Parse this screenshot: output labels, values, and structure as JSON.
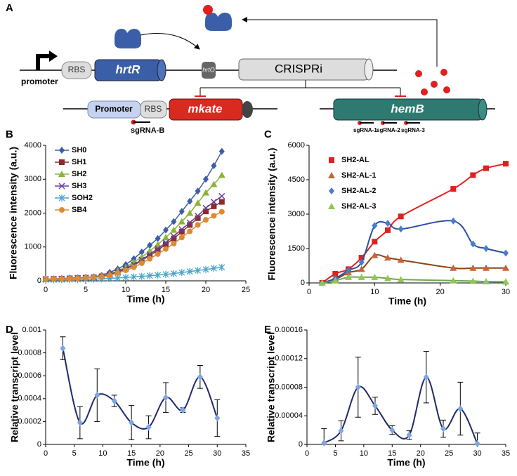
{
  "diagram": {
    "panel": "A",
    "promoter_arrow": "promoter",
    "rbs_1": "RBS",
    "hrtR": "hrtR",
    "hrtO": "hrtO",
    "crispri": "CRISPRi",
    "promoter_box": "Promoter",
    "rbs_2": "RBS",
    "mkate": "mkate",
    "hemB": "hemB",
    "sgrna_b": "sgRNA-B",
    "sgrna_1": "sgRNA-1",
    "sgrna_2": "sgRNA-2",
    "sgrna_3": "sgRNA-3"
  },
  "chart_data": [
    {
      "type": "line",
      "panel": "B",
      "xlabel": "Time (h)",
      "ylabel": "Fluorescence intensity (a.u.)",
      "legend": true,
      "line": "straight",
      "x": [
        0,
        1,
        2,
        3,
        4,
        5,
        6,
        7,
        8,
        9,
        10,
        11,
        12,
        13,
        14,
        15,
        16,
        17,
        18,
        19,
        20,
        21,
        22
      ],
      "xlim": [
        0,
        25
      ],
      "xticks": [
        0,
        5,
        10,
        15,
        20,
        25
      ],
      "ylim": [
        0,
        4000
      ],
      "yticks": [
        0,
        1000,
        2000,
        3000,
        4000
      ],
      "series": [
        {
          "name": "SH0",
          "color": "#3b5ea8",
          "marker": "diamond",
          "values": [
            50,
            60,
            70,
            80,
            90,
            100,
            120,
            160,
            250,
            350,
            480,
            650,
            850,
            1050,
            1250,
            1500,
            1750,
            2050,
            2350,
            2650,
            3000,
            3400,
            3820
          ]
        },
        {
          "name": "SH1",
          "color": "#8b2b2b",
          "marker": "square",
          "values": [
            50,
            55,
            60,
            70,
            80,
            90,
            100,
            130,
            180,
            260,
            350,
            460,
            600,
            750,
            900,
            1080,
            1250,
            1450,
            1650,
            1850,
            2050,
            2200,
            2330
          ]
        },
        {
          "name": "SH2",
          "color": "#8db33a",
          "marker": "triangle",
          "values": [
            50,
            55,
            60,
            70,
            80,
            90,
            110,
            140,
            200,
            300,
            400,
            550,
            700,
            880,
            1070,
            1280,
            1500,
            1750,
            2000,
            2300,
            2600,
            2850,
            3120
          ]
        },
        {
          "name": "SH3",
          "color": "#6a3d9a",
          "marker": "x",
          "values": [
            50,
            55,
            60,
            70,
            80,
            90,
            100,
            130,
            190,
            270,
            370,
            480,
            620,
            780,
            950,
            1130,
            1320,
            1520,
            1720,
            1920,
            2150,
            2330,
            2500
          ]
        },
        {
          "name": "SOH2",
          "color": "#4aa3c8",
          "marker": "star",
          "values": [
            30,
            32,
            35,
            38,
            40,
            45,
            50,
            60,
            70,
            85,
            100,
            115,
            130,
            150,
            170,
            190,
            215,
            245,
            275,
            305,
            335,
            370,
            400
          ]
        },
        {
          "name": "SB4",
          "color": "#d98b35",
          "marker": "circle",
          "values": [
            50,
            55,
            60,
            65,
            75,
            85,
            95,
            120,
            160,
            230,
            310,
            400,
            520,
            650,
            790,
            940,
            1100,
            1280,
            1460,
            1650,
            1800,
            1920,
            2040
          ]
        }
      ]
    },
    {
      "type": "line",
      "panel": "C",
      "xlabel": "Time (h)",
      "ylabel": "Fluorescence intensity (a.u.)",
      "legend": true,
      "line": "smooth",
      "x": [
        2,
        4,
        6,
        8,
        10,
        12,
        14,
        22,
        25,
        27,
        30
      ],
      "xlim": [
        0,
        30
      ],
      "xticks": [
        0,
        10,
        20,
        30
      ],
      "ylim": [
        0,
        6000
      ],
      "yticks": [
        0,
        1500,
        3000,
        4500,
        6000
      ],
      "series": [
        {
          "name": "SH2-AL",
          "color": "#e0201e",
          "line_color": "#e0201e",
          "marker": "square",
          "values": [
            0,
            400,
            600,
            1100,
            1800,
            2300,
            2900,
            4100,
            4700,
            5000,
            5200
          ]
        },
        {
          "name": "SH2-AL-1",
          "color": "#c8643a",
          "line_color": "#8b4513",
          "marker": "triangle",
          "values": [
            0,
            150,
            450,
            600,
            1200,
            1100,
            1000,
            650,
            650,
            650,
            650
          ]
        },
        {
          "name": "SH2-AL-2",
          "color": "#4a7cc8",
          "line_color": "#2b4fa0",
          "marker": "diamond",
          "values": [
            0,
            200,
            550,
            900,
            2500,
            2600,
            2350,
            2700,
            1700,
            1500,
            1300
          ]
        },
        {
          "name": "SH2-AL-3",
          "color": "#8fc850",
          "line_color": "#6aa84f",
          "marker": "triangle",
          "values": [
            0,
            100,
            250,
            250,
            250,
            200,
            150,
            100,
            80,
            60,
            50
          ]
        }
      ]
    },
    {
      "type": "line",
      "panel": "D",
      "xlabel": "Time (h)",
      "ylabel": "Relative transcript level",
      "legend": false,
      "line": "smooth",
      "x": [
        3,
        6,
        9,
        12,
        15,
        18,
        21,
        24,
        27,
        30
      ],
      "xlim": [
        0,
        35
      ],
      "xticks": [
        0,
        5,
        10,
        15,
        20,
        25,
        30,
        35
      ],
      "ylim": [
        0,
        0.001
      ],
      "yticks": [
        0,
        0.0002,
        0.0004,
        0.0006,
        0.0008,
        0.001
      ],
      "series": [
        {
          "color": "#7ea6e0",
          "line_color": "#1f2a6b",
          "marker": "diamond",
          "values": [
            0.00084,
            0.00019,
            0.00043,
            0.00038,
            0.00019,
            0.00015,
            0.00041,
            0.0003,
            0.00059,
            0.00023
          ],
          "errors": [
            0.0001,
            0.00014,
            0.00023,
            5e-05,
            0.00015,
            0.0001,
            0.00013,
            2e-05,
            0.0001,
            0.00016
          ]
        }
      ]
    },
    {
      "type": "line",
      "panel": "E",
      "xlabel": "Time (h)",
      "ylabel": "Relative transcript level",
      "legend": false,
      "line": "smooth",
      "x": [
        3,
        6,
        9,
        12,
        15,
        18,
        21,
        24,
        27,
        30
      ],
      "xlim": [
        0,
        35
      ],
      "xticks": [
        0,
        5,
        10,
        15,
        20,
        25,
        30,
        35
      ],
      "ylim": [
        0,
        0.00016
      ],
      "yticks": [
        0,
        4e-05,
        8e-05,
        0.00012,
        0.00016
      ],
      "series": [
        {
          "color": "#7ea6e0",
          "line_color": "#1f2a6b",
          "marker": "diamond",
          "values": [
            2e-06,
            1.9e-05,
            8e-05,
            5.4e-05,
            2e-05,
            1.3e-05,
            9.4e-05,
            2.2e-05,
            5e-05,
            1e-06
          ],
          "errors": [
            2e-05,
            1.4e-05,
            4.2e-05,
            1.2e-05,
            6e-06,
            6e-06,
            3.6e-05,
            1.2e-05,
            3.7e-05,
            1.5e-05
          ]
        }
      ]
    }
  ]
}
